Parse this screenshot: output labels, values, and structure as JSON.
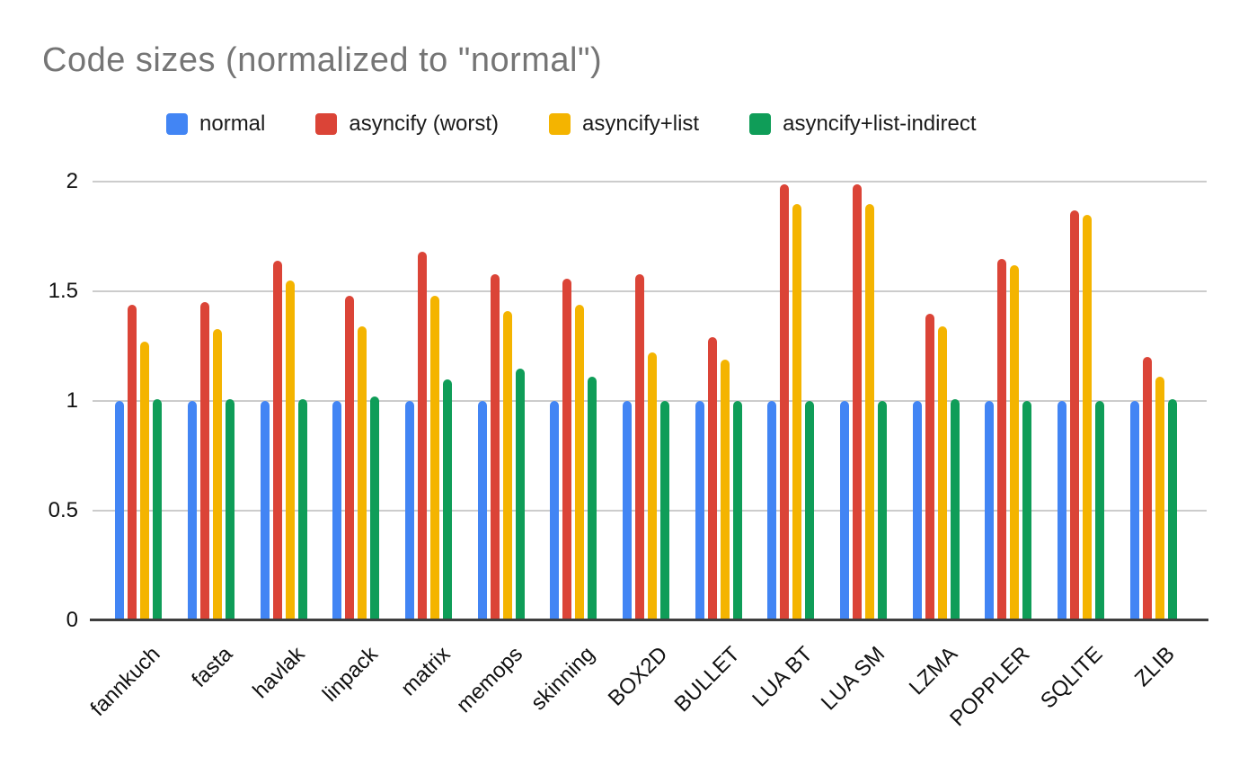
{
  "chart_data": {
    "type": "bar",
    "title": "Code sizes (normalized to \"normal\")",
    "xlabel": "",
    "ylabel": "",
    "categories": [
      "fannkuch",
      "fasta",
      "havlak",
      "linpack",
      "matrix",
      "memops",
      "skinning",
      "BOX2D",
      "BULLET",
      "LUA BT",
      "LUA SM",
      "LZMA",
      "POPPLER",
      "SQLITE",
      "ZLIB"
    ],
    "series": [
      {
        "name": "normal",
        "color": "#4285F4",
        "values": [
          1.0,
          1.0,
          1.0,
          1.0,
          1.0,
          1.0,
          1.0,
          1.0,
          1.0,
          1.0,
          1.0,
          1.0,
          1.0,
          1.0,
          1.0
        ]
      },
      {
        "name": "asyncify (worst)",
        "color": "#DB4437",
        "values": [
          1.44,
          1.45,
          1.64,
          1.48,
          1.68,
          1.58,
          1.56,
          1.58,
          1.29,
          1.99,
          1.99,
          1.4,
          1.65,
          1.87,
          1.2
        ]
      },
      {
        "name": "asyncify+list",
        "color": "#F4B400",
        "values": [
          1.27,
          1.33,
          1.55,
          1.34,
          1.48,
          1.41,
          1.44,
          1.22,
          1.19,
          1.9,
          1.9,
          1.34,
          1.62,
          1.85,
          1.11
        ]
      },
      {
        "name": "asyncify+list-indirect",
        "color": "#0F9D58",
        "values": [
          1.01,
          1.01,
          1.01,
          1.02,
          1.1,
          1.15,
          1.11,
          1.0,
          1.0,
          1.0,
          1.0,
          1.01,
          1.0,
          1.0,
          1.01
        ]
      }
    ],
    "y_ticks": [
      0,
      0.5,
      1,
      1.5,
      2
    ],
    "ylim": [
      0,
      2.05
    ],
    "grid": true,
    "legend_position": "top"
  }
}
